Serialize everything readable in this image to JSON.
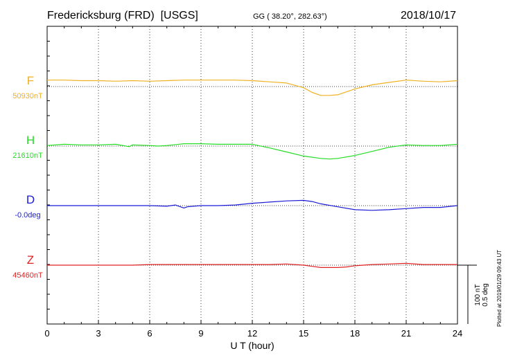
{
  "header": {
    "station": "Fredericksburg (FRD)  [USGS]",
    "coords": "GG ( 38.20°, 282.63°)",
    "date": "2018/10/17"
  },
  "footer": {
    "plotted": "Plotted at 2019/01/29 09:43 UT",
    "scale_nt": "100 nT",
    "scale_deg": "0.5 deg"
  },
  "chart_data": {
    "type": "line",
    "xlabel": "U T (hour)",
    "xlim": [
      0,
      24
    ],
    "xticks": [
      0,
      3,
      6,
      9,
      12,
      15,
      18,
      21,
      24
    ],
    "grid": true,
    "series": [
      {
        "name": "F",
        "baseline_label": "50930nT",
        "color": "#f0b020",
        "x": [
          0,
          1,
          2,
          3,
          4,
          5,
          6,
          7,
          8,
          9,
          10,
          11,
          12,
          13,
          14,
          15,
          15.5,
          16,
          16.5,
          17,
          17.5,
          18,
          19,
          20,
          21,
          22,
          23,
          24
        ],
        "offset_nT": [
          11,
          11,
          10,
          10,
          9,
          10,
          9,
          10,
          11,
          11,
          11,
          11,
          10,
          8,
          6,
          -2,
          -10,
          -15,
          -15,
          -14,
          -9,
          -4,
          3,
          7,
          11,
          9,
          8,
          10
        ]
      },
      {
        "name": "H",
        "baseline_label": "21610nT",
        "color": "#22dd22",
        "x": [
          0,
          1,
          2,
          3,
          4,
          4.8,
          5,
          6,
          6.5,
          7,
          8,
          9,
          10,
          11,
          12,
          13,
          14,
          15,
          16,
          16.5,
          17,
          18,
          19,
          20,
          21,
          22,
          23,
          24
        ],
        "offset_nT": [
          1,
          3,
          2,
          2,
          3,
          -1,
          2,
          1,
          0,
          1,
          4,
          4,
          3,
          3,
          3,
          -3,
          -10,
          -17,
          -21,
          -22,
          -21,
          -16,
          -9,
          -2,
          2,
          1,
          1,
          3
        ]
      },
      {
        "name": "D",
        "baseline_label": "-0.0deg",
        "color": "#1a1ad6",
        "x": [
          0,
          1,
          2,
          3,
          4,
          5,
          6,
          7,
          7.5,
          8,
          8.2,
          9,
          10,
          11,
          12,
          13,
          14,
          15,
          15.5,
          16,
          17,
          18,
          19,
          20,
          21,
          22,
          23,
          24
        ],
        "offset_deg": [
          0,
          0,
          0,
          0,
          0,
          0,
          0,
          -0.005,
          0.005,
          -0.02,
          -0.01,
          0,
          0,
          0.005,
          0.02,
          0.03,
          0.04,
          0.045,
          0.035,
          0.015,
          -0.01,
          -0.035,
          -0.04,
          -0.035,
          -0.025,
          -0.015,
          -0.015,
          0
        ]
      },
      {
        "name": "Z",
        "baseline_label": "45460nT",
        "color": "#e02020",
        "x": [
          0,
          1,
          2,
          3,
          4,
          5,
          6,
          7,
          8,
          9,
          10,
          11,
          12,
          13,
          14,
          15,
          15.5,
          16,
          16.5,
          17,
          17.5,
          18,
          19,
          20,
          21,
          22,
          23,
          24
        ],
        "offset_nT": [
          0,
          0,
          0,
          0,
          0,
          0,
          1,
          1,
          1,
          1,
          1,
          1,
          1,
          1,
          2,
          0,
          -2,
          -4,
          -4,
          -4,
          -3,
          -1,
          1,
          2,
          3,
          1,
          1,
          1
        ]
      }
    ]
  }
}
